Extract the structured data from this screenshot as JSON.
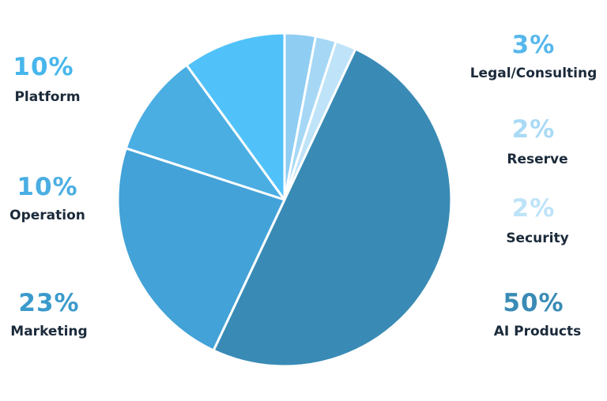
{
  "chart_data": {
    "type": "pie",
    "title": "",
    "start_angle_deg": 0,
    "direction": "clockwise",
    "slices": [
      {
        "label": "Legal/Consulting",
        "pct_label": "3%",
        "value": 3,
        "color": "#8fcdf3",
        "pct_color": "#56b7ec"
      },
      {
        "label": "Reserve",
        "pct_label": "2%",
        "value": 2,
        "color": "#a6d8f6",
        "pct_color": "#a9daf5"
      },
      {
        "label": "Security",
        "pct_label": "2%",
        "value": 2,
        "color": "#bfe3f8",
        "pct_color": "#bde3f8"
      },
      {
        "label": "AI Products",
        "pct_label": "50%",
        "value": 50,
        "color": "#398bb5",
        "pct_color": "#398bb5"
      },
      {
        "label": "Marketing",
        "pct_label": "23%",
        "value": 23,
        "color": "#43a2d7",
        "pct_color": "#3a9acc"
      },
      {
        "label": "Operation",
        "pct_label": "10%",
        "value": 10,
        "color": "#4aaee3",
        "pct_color": "#4aaee3"
      },
      {
        "label": "Platform",
        "pct_label": "10%",
        "value": 10,
        "color": "#51c2f9",
        "pct_color": "#47b6ec"
      }
    ],
    "legend": "side labels"
  }
}
